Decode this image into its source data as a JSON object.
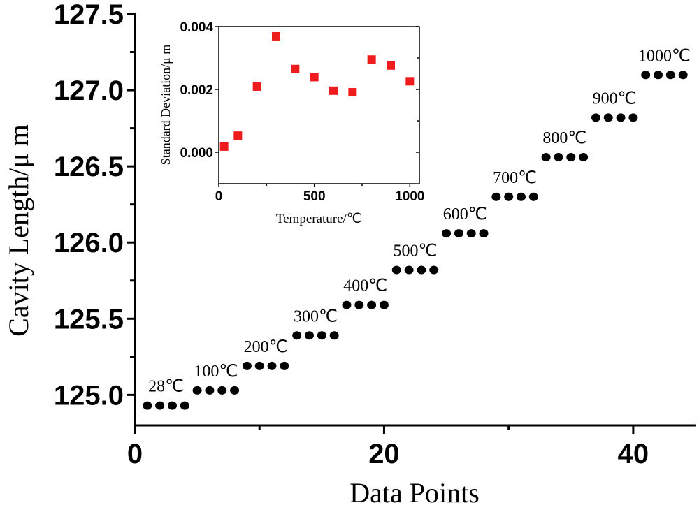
{
  "chart_data": [
    {
      "type": "scatter",
      "xlabel": "Data Points",
      "ylabel": "Cavity Length/μ m",
      "xlim": [
        0,
        45
      ],
      "ylim": [
        124.8,
        127.5
      ],
      "xticks": [
        "0",
        "20",
        "40"
      ],
      "yticks": [
        "125.0",
        "125.5",
        "126.0",
        "126.5",
        "127.0",
        "127.5"
      ],
      "grid": false,
      "marker_color": "#000000",
      "groups": [
        {
          "label": "28℃",
          "x": [
            1,
            2,
            3,
            4
          ],
          "y": [
            124.93,
            124.93,
            124.93,
            124.93
          ]
        },
        {
          "label": "100℃",
          "x": [
            5,
            6,
            7,
            8
          ],
          "y": [
            125.03,
            125.03,
            125.03,
            125.03
          ]
        },
        {
          "label": "200℃",
          "x": [
            9,
            10,
            11,
            12
          ],
          "y": [
            125.19,
            125.19,
            125.19,
            125.19
          ]
        },
        {
          "label": "300℃",
          "x": [
            13,
            14,
            15,
            16
          ],
          "y": [
            125.39,
            125.39,
            125.39,
            125.39
          ]
        },
        {
          "label": "400℃",
          "x": [
            17,
            18,
            19,
            20
          ],
          "y": [
            125.59,
            125.59,
            125.59,
            125.59
          ]
        },
        {
          "label": "500℃",
          "x": [
            21,
            22,
            23,
            24
          ],
          "y": [
            125.82,
            125.82,
            125.82,
            125.82
          ]
        },
        {
          "label": "600℃",
          "x": [
            25,
            26,
            27,
            28
          ],
          "y": [
            126.06,
            126.06,
            126.06,
            126.06
          ]
        },
        {
          "label": "700℃",
          "x": [
            29,
            30,
            31,
            32
          ],
          "y": [
            126.3,
            126.3,
            126.3,
            126.3
          ]
        },
        {
          "label": "800℃",
          "x": [
            33,
            34,
            35,
            36
          ],
          "y": [
            126.56,
            126.56,
            126.56,
            126.56
          ]
        },
        {
          "label": "900℃",
          "x": [
            37,
            38,
            39,
            40
          ],
          "y": [
            126.82,
            126.82,
            126.82,
            126.82
          ]
        },
        {
          "label": "1000℃",
          "x": [
            41,
            42,
            43,
            44
          ],
          "y": [
            127.1,
            127.1,
            127.1,
            127.1
          ]
        }
      ]
    },
    {
      "type": "scatter",
      "inset": true,
      "xlabel": "Temperature/℃",
      "ylabel": "Standard Deviation/μ m",
      "xlim": [
        0,
        1050
      ],
      "ylim": [
        -0.001,
        0.004
      ],
      "xticks": [
        "0",
        "500",
        "1000"
      ],
      "yticks": [
        "0.000",
        "0.002",
        "0.004"
      ],
      "grid": false,
      "marker_color": "#ee1c1c",
      "x": [
        28,
        100,
        200,
        300,
        400,
        500,
        600,
        700,
        800,
        900,
        1000
      ],
      "y": [
        0.00018,
        0.00053,
        0.00209,
        0.00369,
        0.00265,
        0.00239,
        0.00196,
        0.00191,
        0.00295,
        0.00276,
        0.00226
      ]
    }
  ]
}
